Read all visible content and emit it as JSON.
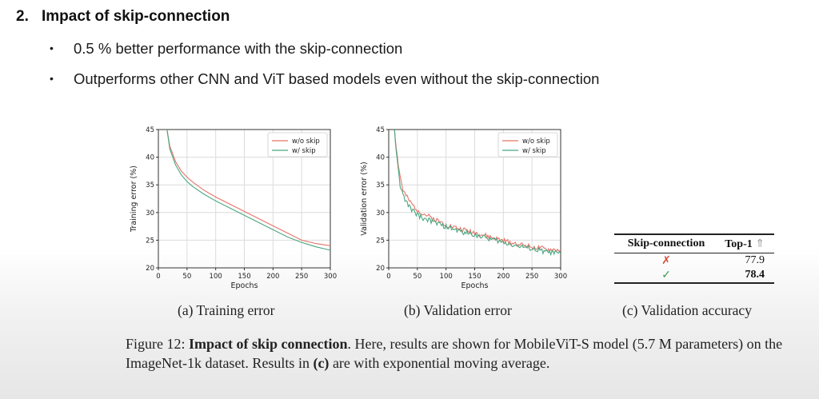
{
  "heading": {
    "number": "2.",
    "title": "Impact of skip-connection"
  },
  "bullets": [
    "0.5 % better performance with the skip-connection",
    "Outperforms other CNN and ViT based models even without the skip-connection"
  ],
  "colors": {
    "wo_skip": "#e57368",
    "w_skip": "#48a882"
  },
  "chart_data": [
    {
      "type": "line",
      "caption": "(a) Training error",
      "xlabel": "Epochs",
      "ylabel": "Training error (%)",
      "xlim": [
        0,
        300
      ],
      "ylim": [
        20,
        45
      ],
      "xticks": [
        0,
        50,
        100,
        150,
        200,
        250,
        300
      ],
      "yticks": [
        20,
        25,
        30,
        35,
        40,
        45
      ],
      "grid": true,
      "legend_position": "top-right",
      "x": [
        15,
        20,
        30,
        40,
        50,
        60,
        80,
        100,
        125,
        150,
        175,
        200,
        225,
        250,
        275,
        300
      ],
      "series": [
        {
          "name": "w/o skip",
          "values": [
            45,
            42,
            39.2,
            37.5,
            36.4,
            35.5,
            34,
            32.8,
            31.5,
            30.2,
            28.9,
            27.6,
            26.3,
            25,
            24.4,
            24
          ]
        },
        {
          "name": "w/ skip",
          "values": [
            45,
            41.5,
            38.6,
            36.8,
            35.6,
            34.7,
            33.3,
            32.1,
            30.8,
            29.5,
            28.2,
            26.9,
            25.6,
            24.6,
            23.8,
            23.2
          ]
        }
      ]
    },
    {
      "type": "line",
      "caption": "(b) Validation error",
      "xlabel": "Epochs",
      "ylabel": "Validation error (%)",
      "xlim": [
        0,
        300
      ],
      "ylim": [
        20,
        45
      ],
      "xticks": [
        0,
        50,
        100,
        150,
        200,
        250,
        300
      ],
      "yticks": [
        20,
        25,
        30,
        35,
        40,
        45
      ],
      "grid": true,
      "legend_position": "top-right",
      "x": [
        10,
        15,
        20,
        25,
        30,
        40,
        50,
        60,
        70,
        80,
        100,
        125,
        150,
        175,
        200,
        225,
        250,
        275,
        300
      ],
      "series": [
        {
          "name": "w/o skip",
          "values": [
            45,
            40,
            36.5,
            34,
            33,
            31.5,
            30.5,
            29.8,
            29.3,
            28.8,
            27.8,
            27,
            26.4,
            25.6,
            24.9,
            24.3,
            23.8,
            23.3,
            23.2
          ]
        },
        {
          "name": "w/ skip",
          "values": [
            45,
            39,
            35,
            33,
            32,
            30.5,
            29.6,
            29,
            28.6,
            28.2,
            27.4,
            26.6,
            26,
            25.3,
            24.6,
            24,
            23.4,
            22.9,
            22.6
          ]
        }
      ]
    }
  ],
  "table": {
    "caption": "(c) Validation accuracy",
    "headers": [
      "Skip-connection",
      "Top-1"
    ],
    "header_arrow": "⇑",
    "rows": [
      {
        "mark": "✗",
        "value": "77.9"
      },
      {
        "mark": "✓",
        "value": "78.4"
      }
    ]
  },
  "figure_caption": {
    "label": "Figure 12:",
    "bold": "Impact of skip connection",
    "text1": ". Here, results are shown for MobileViT-S model (5.7 M parameters) on the ImageNet-1k dataset. Results in ",
    "bold2": "(c)",
    "text2": " are with exponential moving average."
  }
}
